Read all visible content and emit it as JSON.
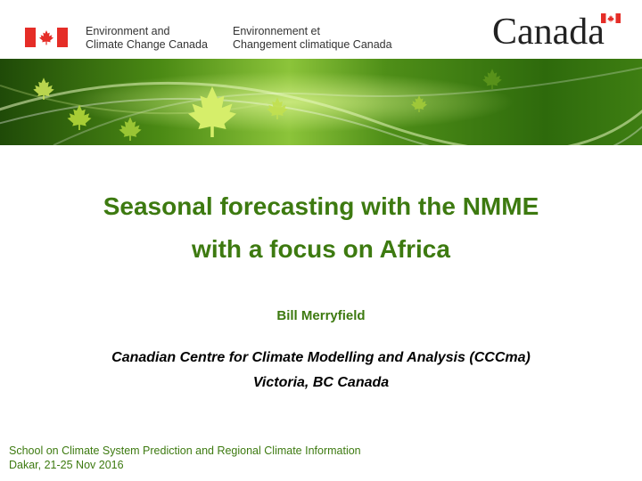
{
  "header": {
    "dept_en_line1": "Environment and",
    "dept_en_line2": "Climate Change Canada",
    "dept_fr_line1": "Environnement et",
    "dept_fr_line2": "Changement climatique Canada",
    "wordmark": "Canada"
  },
  "title": {
    "line1": "Seasonal forecasting with the NMME",
    "line2": "with a focus on Africa"
  },
  "author": "Bill Merryfield",
  "affiliation": {
    "line1": "Canadian Centre for Climate Modelling and Analysis (CCCma)",
    "line2": "Victoria, BC Canada"
  },
  "footer": {
    "line1": "School on Climate System Prediction and Regional Climate Information",
    "line2": "Dakar, 21-25 Nov 2016"
  },
  "colors": {
    "title_green": "#3d7a10",
    "flag_red": "#e52d27"
  },
  "icons": {
    "header_flag": "canada-flag-icon",
    "banner": "maple-leaf-banner"
  }
}
